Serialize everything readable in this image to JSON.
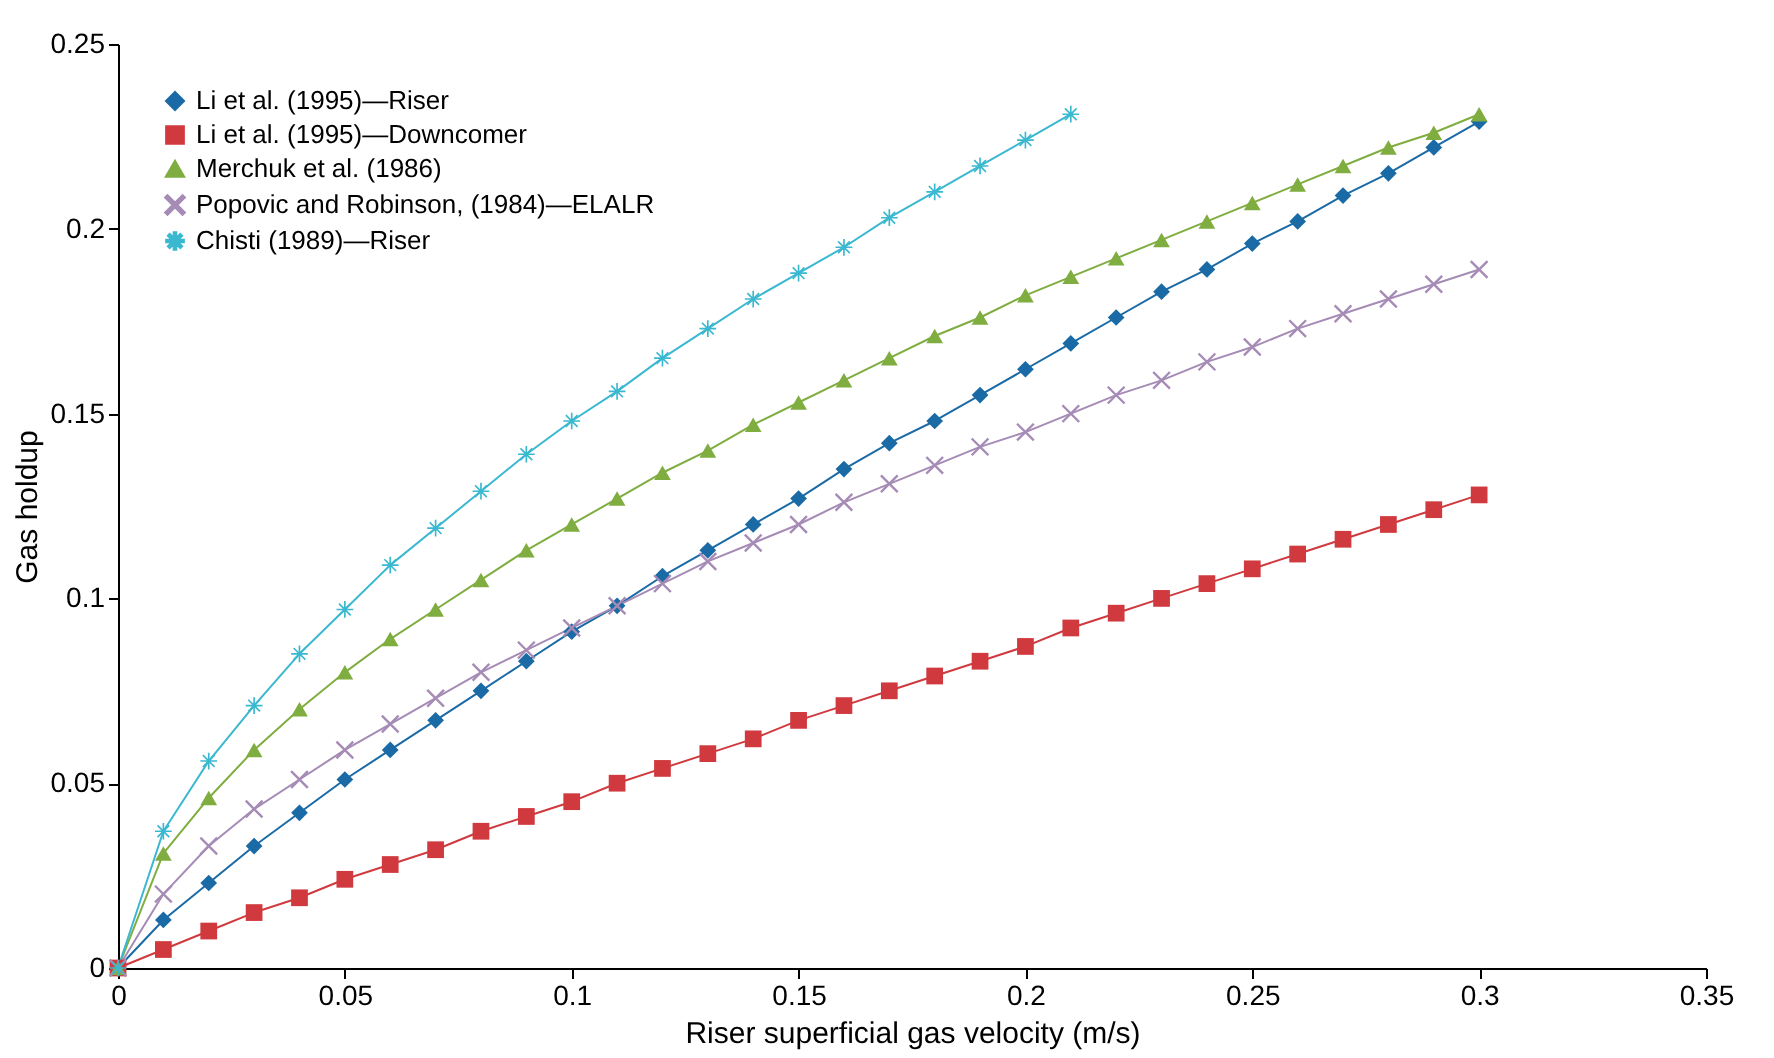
{
  "chart_data": {
    "type": "line",
    "xlabel": "Riser superficial gas velocity (m/s)",
    "ylabel": "Gas holdup",
    "xlim": [
      0,
      0.35
    ],
    "ylim": [
      0,
      0.25
    ],
    "xticks": [
      0,
      0.05,
      0.1,
      0.15,
      0.2,
      0.25,
      0.3,
      0.35
    ],
    "yticks": [
      0,
      0.05,
      0.1,
      0.15,
      0.2,
      0.25
    ],
    "grid": false,
    "legend": "top left",
    "x": [
      0,
      0.01,
      0.02,
      0.03,
      0.04,
      0.05,
      0.06,
      0.07,
      0.08,
      0.09,
      0.1,
      0.11,
      0.12,
      0.13,
      0.14,
      0.15,
      0.16,
      0.17,
      0.18,
      0.19,
      0.2,
      0.21,
      0.22,
      0.23,
      0.24,
      0.25,
      0.26,
      0.27,
      0.28,
      0.29,
      0.3
    ],
    "series": [
      {
        "name": "Li et al. (1995)—Riser",
        "color": "#1a6aa6",
        "marker": "diamond",
        "values": [
          0,
          0.013,
          0.023,
          0.033,
          0.042,
          0.051,
          0.059,
          0.067,
          0.075,
          0.083,
          0.091,
          0.098,
          0.106,
          0.113,
          0.12,
          0.127,
          0.135,
          0.142,
          0.148,
          0.155,
          0.162,
          0.169,
          0.176,
          0.183,
          0.189,
          0.196,
          0.202,
          0.209,
          0.215,
          0.222,
          0.229
        ]
      },
      {
        "name": "Li et al. (1995)—Downcomer",
        "color": "#d0393e",
        "marker": "square",
        "values": [
          0,
          0.005,
          0.01,
          0.015,
          0.019,
          0.024,
          0.028,
          0.032,
          0.037,
          0.041,
          0.045,
          0.05,
          0.054,
          0.058,
          0.062,
          0.067,
          0.071,
          0.075,
          0.079,
          0.083,
          0.087,
          0.092,
          0.096,
          0.1,
          0.104,
          0.108,
          0.112,
          0.116,
          0.12,
          0.124,
          0.128
        ]
      },
      {
        "name": "Merchuk et al. (1986)",
        "color": "#7fad3f",
        "marker": "triangle",
        "values": [
          0,
          0.031,
          0.046,
          0.059,
          0.07,
          0.08,
          0.089,
          0.097,
          0.105,
          0.113,
          0.12,
          0.127,
          0.134,
          0.14,
          0.147,
          0.153,
          0.159,
          0.165,
          0.171,
          0.176,
          0.182,
          0.187,
          0.192,
          0.197,
          0.202,
          0.207,
          0.212,
          0.217,
          0.222,
          0.226,
          0.231
        ]
      },
      {
        "name": "Popovic and Robinson, (1984)—ELALR",
        "color": "#a58bb5",
        "marker": "cross",
        "values": [
          0,
          0.02,
          0.033,
          0.043,
          0.051,
          0.059,
          0.066,
          0.073,
          0.08,
          0.086,
          0.092,
          0.098,
          0.104,
          0.11,
          0.115,
          0.12,
          0.126,
          0.131,
          0.136,
          0.141,
          0.145,
          0.15,
          0.155,
          0.159,
          0.164,
          0.168,
          0.173,
          0.177,
          0.181,
          0.185,
          0.189
        ]
      },
      {
        "name": "Chisti (1989)—Riser",
        "color": "#3ab8d0",
        "marker": "star",
        "x": [
          0,
          0.01,
          0.02,
          0.03,
          0.04,
          0.05,
          0.06,
          0.07,
          0.08,
          0.09,
          0.1,
          0.11,
          0.12,
          0.13,
          0.14,
          0.15,
          0.16,
          0.17,
          0.18,
          0.19,
          0.2,
          0.21
        ],
        "values": [
          0,
          0.037,
          0.056,
          0.071,
          0.085,
          0.097,
          0.109,
          0.119,
          0.129,
          0.139,
          0.148,
          0.156,
          0.165,
          0.173,
          0.181,
          0.188,
          0.195,
          0.203,
          0.21,
          0.217,
          0.224,
          0.231
        ]
      }
    ]
  }
}
